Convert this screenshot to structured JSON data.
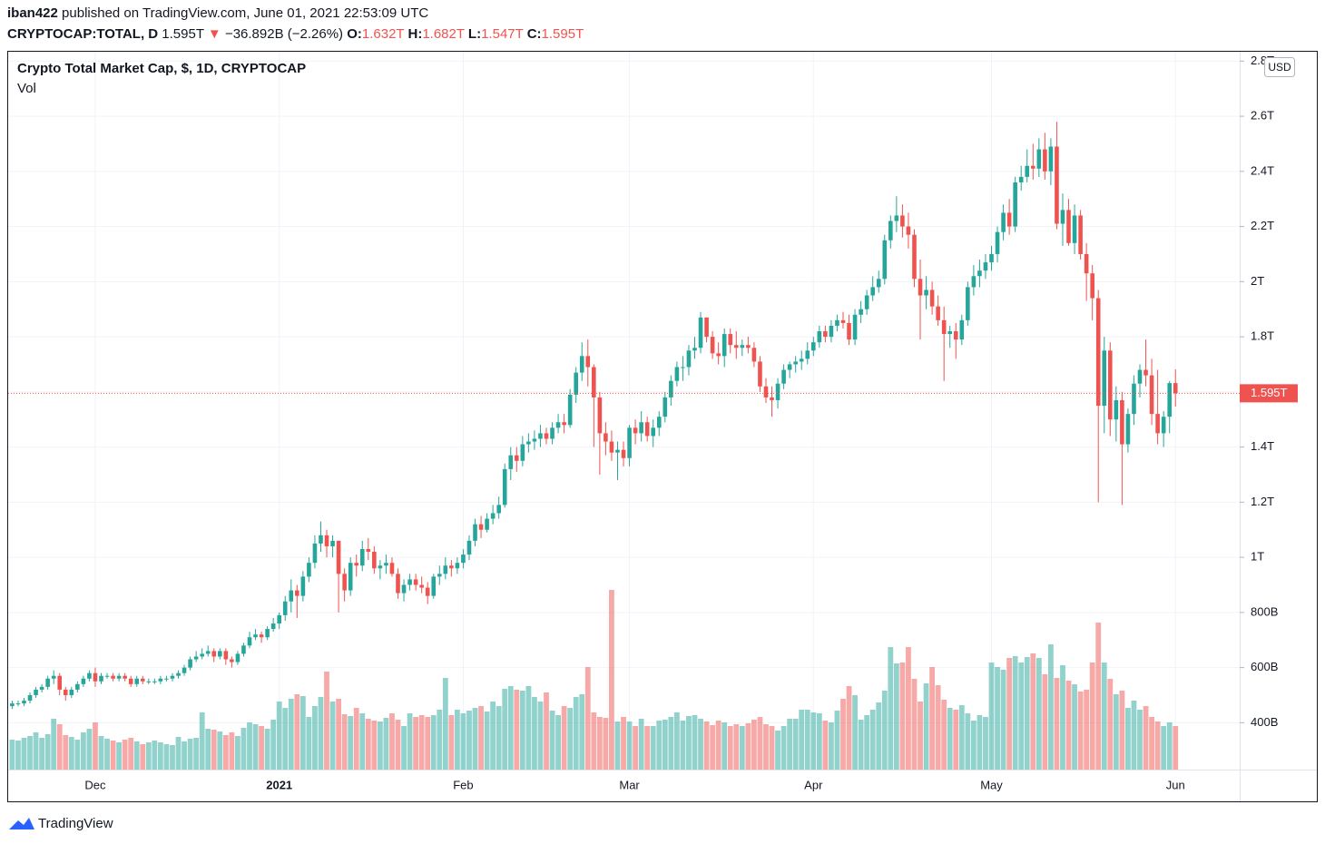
{
  "header": {
    "author": "iban422",
    "published": "published on TradingView.com, June 01, 2021 22:53:09 UTC",
    "symbol": "CRYPTOCAP:TOTAL, D",
    "price": "1.595T",
    "arrow": "▼",
    "change": "−36.892B (−2.26%)",
    "o_label": "O:",
    "o": "1.632T",
    "h_label": "H:",
    "h": "1.682T",
    "l_label": "L:",
    "l": "1.547T",
    "c_label": "C:",
    "c": "1.595T"
  },
  "legend": {
    "title": "Crypto Total Market Cap, $, 1D, CRYPTOCAP",
    "vol": "Vol"
  },
  "currency": "USD",
  "footer": "TradingView",
  "chart_data": {
    "type": "candlestick",
    "up_color": "#26a69a",
    "down_color": "#ef5350",
    "grid": true,
    "ylim": [
      0.23,
      2.834
    ],
    "yticks": [
      {
        "value": 0.4,
        "label": "400B"
      },
      {
        "value": 0.6,
        "label": "600B"
      },
      {
        "value": 0.8,
        "label": "800B"
      },
      {
        "value": 1,
        "label": "1T"
      },
      {
        "value": 1.2,
        "label": "1.2T"
      },
      {
        "value": 1.4,
        "label": "1.4T"
      },
      {
        "value": 1.6,
        "label": "1.6T"
      },
      {
        "value": 1.8,
        "label": "1.8T"
      },
      {
        "value": 2,
        "label": "2T"
      },
      {
        "value": 2.2,
        "label": "2.2T"
      },
      {
        "value": 2.4,
        "label": "2.4T"
      },
      {
        "value": 2.6,
        "label": "2.6T"
      },
      {
        "value": 2.8,
        "label": "2.8T"
      }
    ],
    "xticks": [
      {
        "value": 14,
        "label": "Dec"
      },
      {
        "value": 45,
        "label": "2021"
      },
      {
        "value": 76,
        "label": "Feb"
      },
      {
        "value": 104,
        "label": "Mar"
      },
      {
        "value": 135,
        "label": "Apr"
      },
      {
        "value": 165,
        "label": "May"
      },
      {
        "value": 196,
        "label": "Jun"
      }
    ],
    "open": [
      0.46,
      0.47,
      0.47,
      0.48,
      0.5,
      0.52,
      0.53,
      0.56,
      0.57,
      0.52,
      0.5,
      0.52,
      0.54,
      0.56,
      0.58,
      0.55,
      0.57,
      0.57,
      0.56,
      0.57,
      0.56,
      0.54,
      0.56,
      0.55,
      0.55,
      0.55,
      0.56,
      0.56,
      0.57,
      0.58,
      0.6,
      0.63,
      0.64,
      0.65,
      0.66,
      0.64,
      0.66,
      0.63,
      0.62,
      0.65,
      0.68,
      0.71,
      0.72,
      0.71,
      0.74,
      0.76,
      0.79,
      0.84,
      0.88,
      0.86,
      0.93,
      0.98,
      1.05,
      1.08,
      1.04,
      1.06,
      0.94,
      0.88,
      0.98,
      0.97,
      1.03,
      1.02,
      0.96,
      0.97,
      0.98,
      0.94,
      0.87,
      0.9,
      0.92,
      0.9,
      0.89,
      0.86,
      0.93,
      0.94,
      0.97,
      0.96,
      0.98,
      1.01,
      1.06,
      1.12,
      1.1,
      1.14,
      1.16,
      1.19,
      1.32,
      1.37,
      1.35,
      1.41,
      1.42,
      1.43,
      1.45,
      1.43,
      1.47,
      1.49,
      1.48,
      1.59,
      1.67,
      1.73,
      1.69,
      1.58,
      1.45,
      1.42,
      1.38,
      1.39,
      1.36,
      1.47,
      1.45,
      1.49,
      1.44,
      1.47,
      1.51,
      1.58,
      1.64,
      1.69,
      1.69,
      1.75,
      1.76,
      1.87,
      1.8,
      1.74,
      1.73,
      1.81,
      1.77,
      1.76,
      1.77,
      1.76,
      1.71,
      1.62,
      1.58,
      1.57,
      1.63,
      1.68,
      1.7,
      1.71,
      1.72,
      1.75,
      1.78,
      1.82,
      1.8,
      1.84,
      1.86,
      1.85,
      1.79,
      1.88,
      1.9,
      1.95,
      1.98,
      2.01,
      2.15,
      2.22,
      2.24,
      2.2,
      2.17,
      2.01,
      1.95,
      1.97,
      1.91,
      1.86,
      1.81,
      1.82,
      1.79,
      1.86,
      1.98,
      2.02,
      2.04,
      2.07,
      2.1,
      2.18,
      2.25,
      2.2,
      2.36,
      2.38,
      2.42,
      2.41,
      2.48,
      2.4,
      2.49,
      2.21,
      2.26,
      2.14,
      2.24,
      2.1,
      2.03,
      1.94,
      1.55,
      1.75,
      1.5,
      1.57,
      1.41,
      1.52,
      1.63,
      1.68,
      1.66,
      1.52,
      1.45,
      1.51,
      1.632
    ],
    "high": [
      0.48,
      0.48,
      0.49,
      0.51,
      0.53,
      0.54,
      0.57,
      0.59,
      0.58,
      0.53,
      0.53,
      0.55,
      0.57,
      0.59,
      0.6,
      0.58,
      0.58,
      0.58,
      0.58,
      0.58,
      0.57,
      0.57,
      0.57,
      0.56,
      0.56,
      0.57,
      0.57,
      0.58,
      0.59,
      0.61,
      0.64,
      0.66,
      0.67,
      0.68,
      0.67,
      0.67,
      0.67,
      0.64,
      0.66,
      0.69,
      0.73,
      0.74,
      0.73,
      0.75,
      0.78,
      0.8,
      0.86,
      0.92,
      0.9,
      0.95,
      1.0,
      1.08,
      1.13,
      1.1,
      1.08,
      1.06,
      0.96,
      1.0,
      1.01,
      1.06,
      1.07,
      1.04,
      0.99,
      1.01,
      1.0,
      0.96,
      0.92,
      0.94,
      0.94,
      0.93,
      0.91,
      0.94,
      0.97,
      1.0,
      0.99,
      1.0,
      1.03,
      1.08,
      1.14,
      1.15,
      1.16,
      1.19,
      1.22,
      1.34,
      1.4,
      1.4,
      1.44,
      1.45,
      1.46,
      1.48,
      1.47,
      1.49,
      1.52,
      1.52,
      1.61,
      1.69,
      1.78,
      1.79,
      1.7,
      1.6,
      1.49,
      1.46,
      1.42,
      1.42,
      1.48,
      1.5,
      1.53,
      1.51,
      1.5,
      1.53,
      1.6,
      1.66,
      1.71,
      1.73,
      1.77,
      1.8,
      1.89,
      1.87,
      1.82,
      1.78,
      1.83,
      1.83,
      1.82,
      1.79,
      1.8,
      1.78,
      1.73,
      1.65,
      1.62,
      1.65,
      1.7,
      1.71,
      1.73,
      1.75,
      1.78,
      1.8,
      1.84,
      1.84,
      1.86,
      1.88,
      1.89,
      1.88,
      1.9,
      1.93,
      1.97,
      2.02,
      2.04,
      2.17,
      2.24,
      2.31,
      2.28,
      2.25,
      2.19,
      2.08,
      2.02,
      2.0,
      1.95,
      1.91,
      1.84,
      1.85,
      1.88,
      2.0,
      2.06,
      2.08,
      2.1,
      2.13,
      2.2,
      2.28,
      2.3,
      2.38,
      2.42,
      2.48,
      2.5,
      2.52,
      2.54,
      2.52,
      2.58,
      2.32,
      2.3,
      2.28,
      2.26,
      2.14,
      2.06,
      1.97,
      1.8,
      1.78,
      1.62,
      1.6,
      1.54,
      1.66,
      1.7,
      1.79,
      1.72,
      1.68,
      1.53,
      1.64,
      1.682
    ],
    "low": [
      0.45,
      0.46,
      0.46,
      0.47,
      0.49,
      0.51,
      0.52,
      0.54,
      0.5,
      0.48,
      0.49,
      0.51,
      0.53,
      0.55,
      0.53,
      0.54,
      0.56,
      0.55,
      0.55,
      0.55,
      0.53,
      0.53,
      0.54,
      0.54,
      0.54,
      0.54,
      0.55,
      0.55,
      0.56,
      0.57,
      0.59,
      0.62,
      0.63,
      0.64,
      0.62,
      0.63,
      0.61,
      0.6,
      0.61,
      0.64,
      0.67,
      0.7,
      0.69,
      0.7,
      0.73,
      0.74,
      0.77,
      0.8,
      0.78,
      0.84,
      0.91,
      0.96,
      1.02,
      1.0,
      1.0,
      0.8,
      0.84,
      0.86,
      0.93,
      0.95,
      0.99,
      0.94,
      0.92,
      0.94,
      0.93,
      0.85,
      0.84,
      0.88,
      0.88,
      0.87,
      0.83,
      0.85,
      0.9,
      0.92,
      0.93,
      0.94,
      0.96,
      0.99,
      1.04,
      1.07,
      1.09,
      1.12,
      1.14,
      1.18,
      1.28,
      1.31,
      1.33,
      1.38,
      1.39,
      1.4,
      1.41,
      1.41,
      1.45,
      1.45,
      1.47,
      1.56,
      1.64,
      1.62,
      1.4,
      1.3,
      1.37,
      1.35,
      1.28,
      1.33,
      1.33,
      1.41,
      1.42,
      1.42,
      1.4,
      1.44,
      1.49,
      1.55,
      1.62,
      1.64,
      1.66,
      1.72,
      1.74,
      1.78,
      1.72,
      1.7,
      1.69,
      1.74,
      1.72,
      1.73,
      1.74,
      1.69,
      1.6,
      1.56,
      1.51,
      1.54,
      1.61,
      1.65,
      1.67,
      1.68,
      1.7,
      1.73,
      1.76,
      1.78,
      1.78,
      1.82,
      1.83,
      1.77,
      1.77,
      1.85,
      1.88,
      1.93,
      1.96,
      1.99,
      2.12,
      2.18,
      2.16,
      2.12,
      1.98,
      1.79,
      1.9,
      1.88,
      1.84,
      1.64,
      1.76,
      1.72,
      1.77,
      1.84,
      1.95,
      1.98,
      2.01,
      2.04,
      2.07,
      2.15,
      2.17,
      2.18,
      2.33,
      2.36,
      2.37,
      2.38,
      2.37,
      2.35,
      2.19,
      2.13,
      2.13,
      2.1,
      2.08,
      1.93,
      1.86,
      1.2,
      1.45,
      1.44,
      1.42,
      1.19,
      1.38,
      1.48,
      1.58,
      1.62,
      1.48,
      1.41,
      1.4,
      1.45,
      1.547
    ],
    "close": [
      0.47,
      0.47,
      0.48,
      0.5,
      0.52,
      0.53,
      0.56,
      0.57,
      0.52,
      0.5,
      0.52,
      0.54,
      0.56,
      0.58,
      0.55,
      0.57,
      0.57,
      0.56,
      0.57,
      0.56,
      0.54,
      0.56,
      0.55,
      0.55,
      0.55,
      0.56,
      0.56,
      0.57,
      0.58,
      0.6,
      0.63,
      0.64,
      0.65,
      0.66,
      0.64,
      0.66,
      0.63,
      0.62,
      0.65,
      0.68,
      0.71,
      0.72,
      0.71,
      0.74,
      0.76,
      0.79,
      0.84,
      0.88,
      0.86,
      0.93,
      0.98,
      1.05,
      1.08,
      1.04,
      1.06,
      0.94,
      0.88,
      0.98,
      0.97,
      1.03,
      1.02,
      0.96,
      0.97,
      0.98,
      0.94,
      0.87,
      0.9,
      0.92,
      0.9,
      0.89,
      0.86,
      0.93,
      0.94,
      0.97,
      0.96,
      0.98,
      1.01,
      1.06,
      1.12,
      1.1,
      1.14,
      1.16,
      1.19,
      1.32,
      1.37,
      1.35,
      1.41,
      1.42,
      1.43,
      1.45,
      1.43,
      1.47,
      1.49,
      1.48,
      1.59,
      1.67,
      1.73,
      1.69,
      1.58,
      1.45,
      1.42,
      1.38,
      1.39,
      1.36,
      1.47,
      1.45,
      1.49,
      1.44,
      1.47,
      1.51,
      1.58,
      1.64,
      1.69,
      1.69,
      1.75,
      1.76,
      1.87,
      1.8,
      1.74,
      1.73,
      1.81,
      1.77,
      1.76,
      1.77,
      1.76,
      1.71,
      1.62,
      1.58,
      1.57,
      1.63,
      1.68,
      1.7,
      1.71,
      1.72,
      1.75,
      1.78,
      1.82,
      1.8,
      1.84,
      1.86,
      1.85,
      1.79,
      1.88,
      1.9,
      1.95,
      1.98,
      2.01,
      2.15,
      2.22,
      2.24,
      2.2,
      2.17,
      2.01,
      1.95,
      1.97,
      1.91,
      1.86,
      1.81,
      1.82,
      1.79,
      1.86,
      1.98,
      2.02,
      2.04,
      2.07,
      2.1,
      2.18,
      2.25,
      2.2,
      2.36,
      2.38,
      2.42,
      2.41,
      2.48,
      2.4,
      2.49,
      2.21,
      2.26,
      2.14,
      2.24,
      2.1,
      2.03,
      1.94,
      1.55,
      1.75,
      1.5,
      1.57,
      1.41,
      1.52,
      1.63,
      1.68,
      1.66,
      1.52,
      1.45,
      1.51,
      1.632,
      1.595
    ],
    "volume": [
      66,
      64,
      70,
      74,
      82,
      70,
      78,
      112,
      100,
      76,
      72,
      66,
      82,
      90,
      104,
      74,
      68,
      64,
      60,
      66,
      70,
      62,
      56,
      60,
      64,
      60,
      56,
      54,
      72,
      62,
      68,
      70,
      126,
      90,
      88,
      84,
      76,
      82,
      74,
      92,
      104,
      100,
      96,
      90,
      110,
      150,
      136,
      156,
      166,
      162,
      116,
      140,
      160,
      216,
      150,
      156,
      122,
      118,
      136,
      124,
      112,
      108,
      106,
      114,
      124,
      110,
      96,
      124,
      116,
      120,
      116,
      120,
      132,
      202,
      120,
      132,
      124,
      130,
      136,
      140,
      128,
      150,
      140,
      178,
      184,
      176,
      174,
      184,
      160,
      150,
      170,
      130,
      120,
      140,
      136,
      160,
      166,
      226,
      126,
      116,
      114,
      396,
      106,
      116,
      106,
      96,
      112,
      96,
      96,
      108,
      110,
      116,
      126,
      108,
      118,
      120,
      112,
      106,
      98,
      108,
      104,
      96,
      100,
      96,
      102,
      110,
      116,
      100,
      96,
      86,
      96,
      112,
      112,
      132,
      132,
      126,
      124,
      108,
      104,
      130,
      156,
      184,
      164,
      110,
      120,
      132,
      148,
      174,
      270,
      234,
      236,
      270,
      200,
      150,
      190,
      226,
      186,
      154,
      136,
      132,
      142,
      124,
      108,
      120,
      116,
      236,
      226,
      220,
      246,
      250,
      236,
      248,
      256,
      246,
      210,
      276,
      202,
      230,
      196,
      188,
      172,
      176,
      236,
      324,
      236,
      200,
      166,
      174,
      136,
      152,
      132,
      140,
      116,
      106,
      96,
      104,
      96
    ]
  }
}
